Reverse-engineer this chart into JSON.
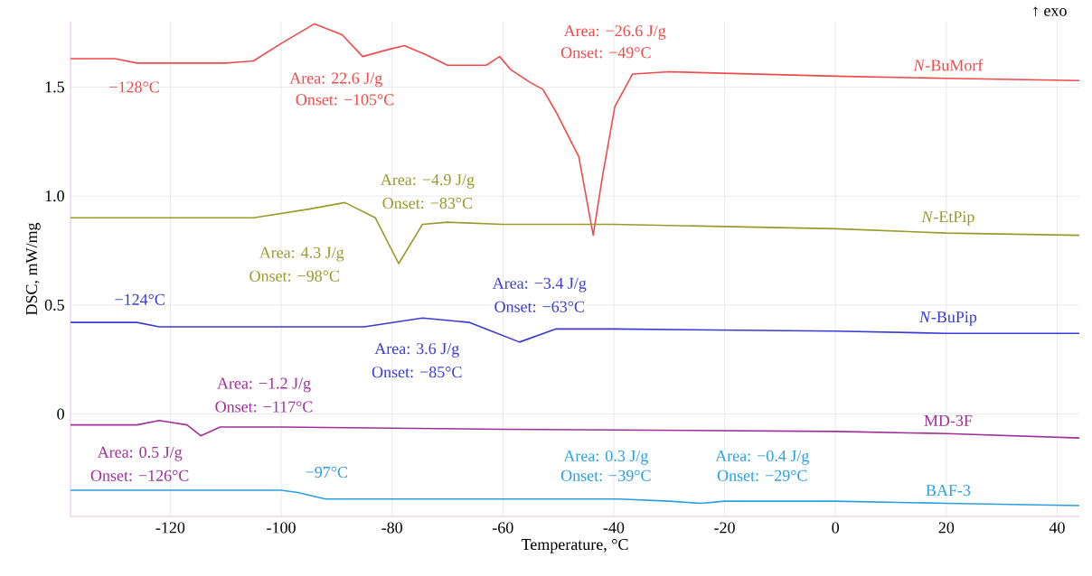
{
  "chart_data": {
    "type": "line",
    "xlabel": "Temperature, °C",
    "ylabel": "DSC, mW/mg",
    "xlim": [
      -138,
      44
    ],
    "ylim": [
      -0.47,
      1.8
    ],
    "xticks": [
      -120,
      -100,
      -80,
      -60,
      -40,
      -20,
      0,
      20,
      40
    ],
    "yticks": [
      0,
      0.5,
      {
        "value": 1.0,
        "label": "1.0"
      },
      1.5
    ],
    "grid": true,
    "legend": false,
    "marker": "none",
    "line_style": "solid",
    "series": [
      {
        "name": "*N*-BuMorf",
        "color": "#f04a4a",
        "x": [
          -138,
          -130,
          -128,
          -126,
          -110,
          -105,
          -100,
          -94,
          -89,
          -85.3,
          -81,
          -77.8,
          -74,
          -70,
          -63,
          -60.6,
          -58.6,
          -55,
          -52.8,
          -50.5,
          -46.3,
          -43.7,
          -42.1,
          -39.8,
          -36.6,
          -30,
          0,
          20,
          44
        ],
        "values": [
          1.63,
          1.63,
          1.62,
          1.61,
          1.61,
          1.62,
          1.7,
          1.79,
          1.74,
          1.64,
          1.67,
          1.69,
          1.65,
          1.6,
          1.6,
          1.64,
          1.58,
          1.52,
          1.49,
          1.39,
          1.18,
          0.82,
          1.08,
          1.41,
          1.56,
          1.57,
          1.55,
          1.54,
          1.53
        ]
      },
      {
        "name": "*N*-EtPip",
        "color": "#9a9a2a",
        "x": [
          -138,
          -120,
          -105,
          -95,
          -88.5,
          -83,
          -78.8,
          -74.5,
          -70,
          -60,
          -40,
          0,
          20,
          44
        ],
        "values": [
          0.9,
          0.9,
          0.9,
          0.94,
          0.97,
          0.9,
          0.69,
          0.87,
          0.88,
          0.87,
          0.87,
          0.85,
          0.83,
          0.82
        ]
      },
      {
        "name": "*N*-BuPip",
        "color": "#3a3ad8",
        "x": [
          -138,
          -126,
          -124,
          -122,
          -100,
          -85,
          -74.5,
          -66,
          -63,
          -57,
          -50.5,
          -40,
          0,
          20,
          44
        ],
        "values": [
          0.42,
          0.42,
          0.41,
          0.4,
          0.4,
          0.4,
          0.44,
          0.42,
          0.39,
          0.33,
          0.39,
          0.39,
          0.38,
          0.37,
          0.37
        ]
      },
      {
        "name": "MD-3F",
        "color": "#a0309a",
        "x": [
          -138,
          -126,
          -122,
          -117,
          -114.5,
          -111,
          -100,
          -60,
          0,
          20,
          44
        ],
        "values": [
          -0.05,
          -0.05,
          -0.03,
          -0.05,
          -0.1,
          -0.06,
          -0.06,
          -0.07,
          -0.08,
          -0.09,
          -0.11
        ]
      },
      {
        "name": "BAF-3",
        "color": "#2aa0e0",
        "x": [
          -138,
          -100,
          -97,
          -92,
          -60,
          -39,
          -30,
          -24.2,
          -20,
          0,
          20,
          44
        ],
        "values": [
          -0.35,
          -0.35,
          -0.36,
          -0.39,
          -0.39,
          -0.39,
          -0.4,
          -0.41,
          -0.4,
          -0.4,
          -0.41,
          -0.42
        ]
      }
    ],
    "annotations": [
      "−128°C",
      "Area:  22.6 J/g",
      "Onset: −105°C",
      "Area: −26.6 J/g",
      "Onset: −49°C",
      "Area: −4.9 J/g",
      "Onset: −83°C",
      "Area:  4.3 J/g",
      "Onset: −98°C",
      "−124°C",
      "Area: −3.4 J/g",
      "Onset: −63°C",
      "Area:  3.6 J/g",
      "Onset: −85°C",
      "Area: −1.2 J/g",
      "Onset: −117°C",
      "Area:  0.5 J/g",
      "Onset: −126°C",
      "−97°C",
      "Area:  0.3 J/g",
      "Onset: −39°C",
      "Area: −0.4 J/g",
      "Onset: −29°C",
      "↑ exo"
    ]
  }
}
